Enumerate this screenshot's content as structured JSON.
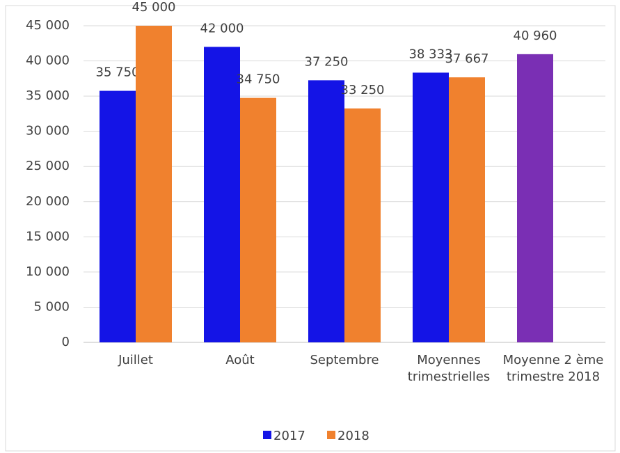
{
  "chart_data": {
    "type": "bar",
    "categories": [
      "Juillet",
      "Août",
      "Septembre",
      "Moyennes trimestrielles",
      "Moyenne 2 ème trimestre 2018"
    ],
    "series": [
      {
        "name": "2017",
        "color": "#1414e6",
        "colors": [
          "#1414e6",
          "#1414e6",
          "#1414e6",
          "#1414e6",
          "#7a2fb4"
        ],
        "values": [
          35750,
          42000,
          37250,
          38333,
          40960
        ],
        "value_labels": [
          "35 750",
          "42 000",
          "37 250",
          "38 333",
          "40 960"
        ]
      },
      {
        "name": "2018",
        "color": "#f0812e",
        "values": [
          45000,
          34750,
          33250,
          37667,
          null
        ],
        "value_labels": [
          "45 000",
          "34 750",
          "33 250",
          "37 667",
          null
        ]
      }
    ],
    "ylim": [
      0,
      45000
    ],
    "yticks": [
      0,
      {
        "value": 5000,
        "label": "5 000"
      },
      {
        "value": 10000,
        "label": "10 000"
      },
      {
        "value": 15000,
        "label": "15 000"
      },
      {
        "value": 20000,
        "label": "20 000"
      },
      {
        "value": 25000,
        "label": "25 000"
      },
      {
        "value": 30000,
        "label": "30 000"
      },
      {
        "value": 35000,
        "label": "35 000"
      },
      {
        "value": 40000,
        "label": "40 000"
      },
      {
        "value": 45000,
        "label": "45 000"
      }
    ],
    "grid": true,
    "legend": "bottom"
  }
}
